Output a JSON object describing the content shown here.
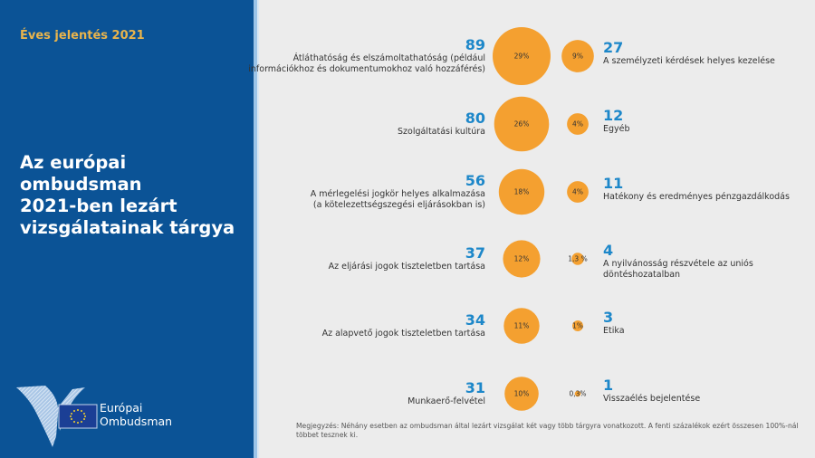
{
  "header": {
    "report_label": "Éves jelentés 2021",
    "title_lines": [
      "Az európai ombudsman",
      "2021-ben lezárt",
      "vizsgálatainak tárgya"
    ]
  },
  "logo": {
    "line1": "Európai",
    "line2": "Ombudsman"
  },
  "colors": {
    "panel": "#0b5396",
    "accent": "#e9b44c",
    "bubble": "#f4a030",
    "number": "#1d87c9"
  },
  "chart_data": {
    "type": "bubble",
    "title": "Az európai ombudsman 2021-ben lezárt vizsgálatainak tárgya",
    "left_column": [
      {
        "count": 89,
        "percent": 29,
        "percent_label": "29%",
        "label_lines": [
          "Átláthatóság és elszámoltathatóság (például",
          "információkhoz és dokumentumokhoz való hozzáférés)"
        ]
      },
      {
        "count": 80,
        "percent": 26,
        "percent_label": "26%",
        "label_lines": [
          "Szolgáltatási kultúra"
        ]
      },
      {
        "count": 56,
        "percent": 18,
        "percent_label": "18%",
        "label_lines": [
          "A mérlegelési jogkör helyes alkalmazása",
          "(a kötelezettségszegési eljárásokban is)"
        ]
      },
      {
        "count": 37,
        "percent": 12,
        "percent_label": "12%",
        "label_lines": [
          "Az eljárási jogok tiszteletben tartása"
        ]
      },
      {
        "count": 34,
        "percent": 11,
        "percent_label": "11%",
        "label_lines": [
          "Az alapvető jogok tiszteletben tartása"
        ]
      },
      {
        "count": 31,
        "percent": 10,
        "percent_label": "10%",
        "label_lines": [
          "Munkaerő-felvétel"
        ]
      }
    ],
    "right_column": [
      {
        "count": 27,
        "percent": 9,
        "percent_label": "9%",
        "label_lines": [
          "A személyzeti kérdések helyes kezelése"
        ]
      },
      {
        "count": 12,
        "percent": 4,
        "percent_label": "4%",
        "label_lines": [
          "Egyéb"
        ]
      },
      {
        "count": 11,
        "percent": 4,
        "percent_label": "4%",
        "label_lines": [
          "Hatékony és eredményes pénzgazdálkodás"
        ]
      },
      {
        "count": 4,
        "percent": 1.3,
        "percent_label": "1,3 %",
        "label_lines": [
          "A nyilvánosság részvétele az uniós",
          "döntéshozatalban"
        ]
      },
      {
        "count": 3,
        "percent": 1,
        "percent_label": "1%",
        "label_lines": [
          "Etika"
        ]
      },
      {
        "count": 1,
        "percent": 0.3,
        "percent_label": "0,3%",
        "label_lines": [
          "Visszaélés bejelentése"
        ]
      }
    ]
  },
  "footnote": {
    "lines": [
      "Megjegyzés: Néhány esetben az ombudsman által lezárt vizsgálat két vagy több tárgyra vonatkozott. A fenti százalékok ezért összesen 100%-nál",
      "többet tesznek ki."
    ]
  }
}
